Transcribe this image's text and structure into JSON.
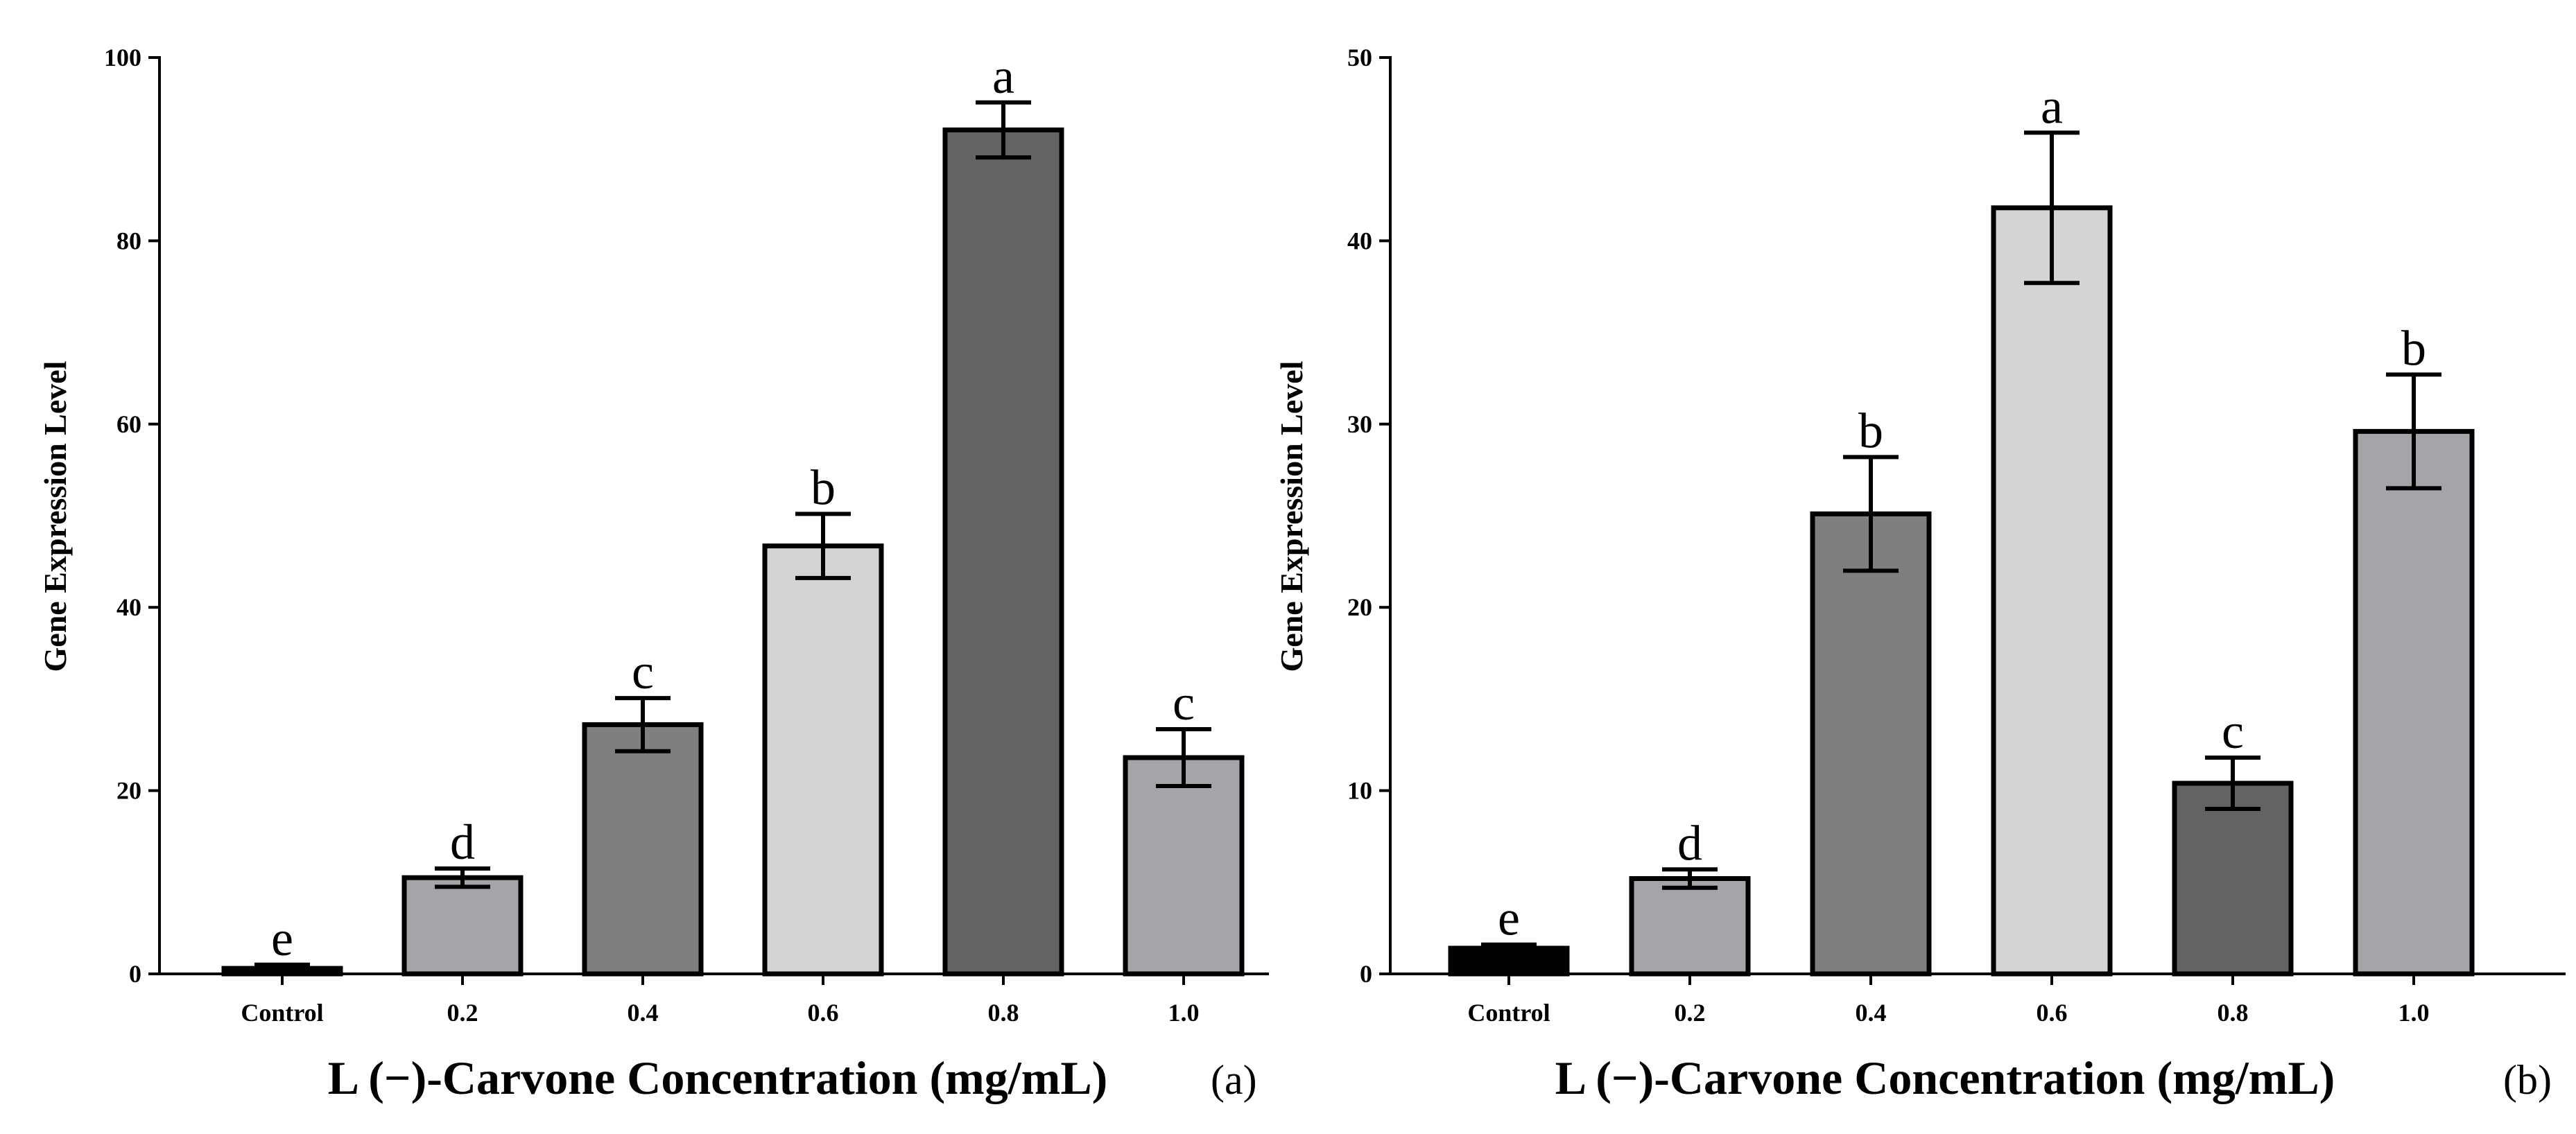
{
  "chart_data": [
    {
      "type": "bar",
      "panel_label": "(a)",
      "categories": [
        "Control",
        "0.2",
        "0.4",
        "0.6",
        "0.8",
        "1.0"
      ],
      "values": [
        0.6,
        10.5,
        27.2,
        46.7,
        92.1,
        23.6
      ],
      "errors": [
        0.4,
        1.0,
        2.9,
        3.5,
        3.0,
        3.1
      ],
      "significance": [
        "e",
        "d",
        "c",
        "b",
        "a",
        "c"
      ],
      "colors": [
        "#000000",
        "#a5a4a9",
        "#7f7f7f",
        "#d4d4d4",
        "#636363",
        "#a5a4a9"
      ],
      "ylabel": "Gene Expression Level",
      "xlabel": "L (−)-Carvone Concentration (mg/mL)",
      "ylim": [
        0,
        100
      ],
      "yticks": [
        0,
        20,
        40,
        60,
        80,
        100
      ],
      "yticklabels": [
        "0",
        "20",
        "40",
        "60",
        "80",
        "100"
      ]
    },
    {
      "type": "bar",
      "panel_label": "(b)",
      "categories": [
        "Control",
        "0.2",
        "0.4",
        "0.6",
        "0.8",
        "1.0"
      ],
      "values": [
        1.4,
        5.2,
        25.1,
        41.8,
        10.4,
        29.6
      ],
      "errors": [
        0.2,
        0.5,
        3.1,
        4.1,
        1.4,
        3.1
      ],
      "significance": [
        "e",
        "d",
        "b",
        "a",
        "c",
        "b"
      ],
      "colors": [
        "#000000",
        "#a5a4a9",
        "#7f7f7f",
        "#d4d4d4",
        "#636363",
        "#a5a4a9"
      ],
      "ylabel": "Gene Expression Level",
      "xlabel": "L (−)-Carvone Concentration (mg/mL)",
      "ylim": [
        0,
        50
      ],
      "yticks": [
        0,
        10,
        20,
        30,
        40,
        50
      ],
      "yticklabels": [
        "0",
        "10",
        "20",
        "30",
        "40",
        "50"
      ]
    }
  ]
}
